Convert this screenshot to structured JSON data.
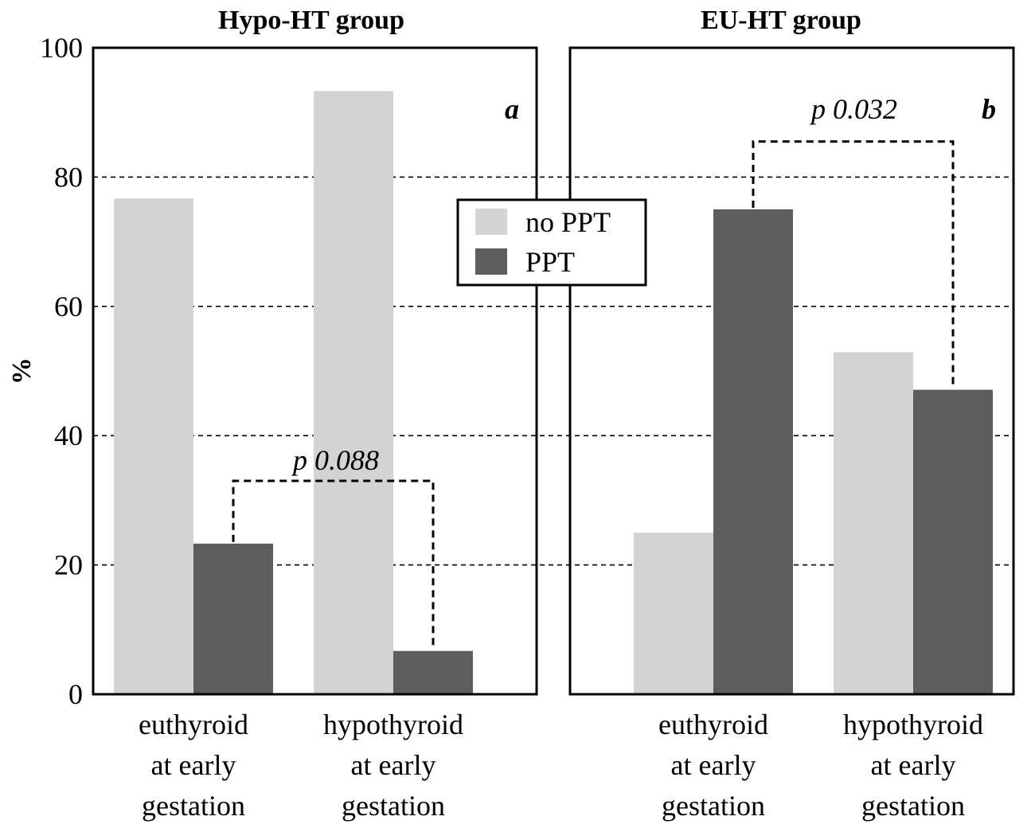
{
  "y_axis": {
    "label": "%",
    "ticks": [
      "0",
      "20",
      "40",
      "60",
      "80",
      "100"
    ]
  },
  "colors": {
    "no_ppt": "#d3d3d3",
    "ppt": "#5d5d5d"
  },
  "legend": {
    "position": "center-top",
    "items": [
      {
        "label": "no PPT",
        "color": "#d3d3d3"
      },
      {
        "label": "PPT",
        "color": "#5d5d5d"
      }
    ]
  },
  "chart_data": [
    {
      "type": "bar",
      "title": "Hypo-HT group",
      "panel_label": "a",
      "ylabel": "%",
      "ylim": [
        0,
        100
      ],
      "grid": "horizontal dashed",
      "categories": [
        [
          "euthyroid",
          "at early",
          "gestation"
        ],
        [
          "hypothyroid",
          "at early",
          "gestation"
        ]
      ],
      "series": [
        {
          "name": "no PPT",
          "values": [
            76.7,
            93.3
          ]
        },
        {
          "name": "PPT",
          "values": [
            23.3,
            6.7
          ]
        }
      ],
      "annotation": {
        "text": "p 0.088",
        "between": "PPT",
        "bracket_top": 33
      }
    },
    {
      "type": "bar",
      "title": "EU-HT group",
      "panel_label": "b",
      "ylabel": "%",
      "ylim": [
        0,
        100
      ],
      "grid": "horizontal dashed",
      "categories": [
        [
          "euthyroid",
          "at early",
          "gestation"
        ],
        [
          "hypothyroid",
          "at early",
          "gestation"
        ]
      ],
      "series": [
        {
          "name": "no PPT",
          "values": [
            25.0,
            52.9
          ]
        },
        {
          "name": "PPT",
          "values": [
            75.0,
            47.1
          ]
        }
      ],
      "annotation": {
        "text": "p 0.032",
        "between": "PPT",
        "bracket_top": 85.5
      }
    }
  ]
}
